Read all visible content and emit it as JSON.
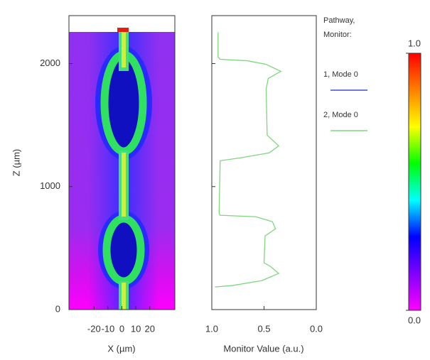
{
  "chart_data": [
    {
      "type": "heatmap",
      "xlabel": "X (µm)",
      "ylabel": "Z (µm)",
      "xlim": [
        -38,
        38
      ],
      "xticks": [
        -20,
        -10,
        0,
        10,
        20
      ],
      "ylim": [
        0,
        2390
      ],
      "yticks": [
        0,
        1000,
        2000
      ]
    },
    {
      "type": "line",
      "xlabel": "Monitor Value (a.u.)",
      "xlim": [
        1,
        0
      ],
      "xticks": [
        {
          "value": 1,
          "label": "1.0"
        },
        0.5,
        {
          "value": 0,
          "label": "0.0"
        }
      ],
      "ylim": [
        0,
        2390
      ],
      "yticks": [
        0,
        1000,
        2000
      ],
      "legend_title": [
        "Pathway,",
        "Monitor:"
      ],
      "y": [
        2254,
        2052,
        2035,
        2023,
        1994,
        1937,
        1879,
        1793,
        1418,
        1331,
        1274,
        1233,
        1210,
        784,
        767,
        755,
        715,
        657,
        599,
        380,
        352,
        294,
        236,
        196,
        184
      ],
      "series": [
        {
          "name": "1, Mode 0",
          "color": "#3f4fd0",
          "values": [
            null,
            null,
            null,
            null,
            null,
            null,
            null,
            null,
            null,
            null,
            null,
            null,
            null,
            null,
            null,
            null,
            null,
            null,
            null,
            null,
            null,
            null,
            null,
            null,
            null
          ]
        },
        {
          "name": "2, Mode 0",
          "color": "#7ed67e",
          "values": [
            0.94,
            0.94,
            0.92,
            0.66,
            0.48,
            0.34,
            0.46,
            0.48,
            0.47,
            0.36,
            0.45,
            0.73,
            0.92,
            0.93,
            0.92,
            0.58,
            0.42,
            0.39,
            0.49,
            0.5,
            0.44,
            0.36,
            0.52,
            0.8,
            0.97
          ]
        }
      ]
    },
    {
      "type": "colorbar",
      "ylim": [
        0,
        1
      ],
      "yticks": [
        {
          "value": 1,
          "label": "1.0"
        },
        {
          "value": 0,
          "label": "0.0"
        }
      ],
      "colors": [
        "#ff00ff",
        "#8000ff",
        "#0000ff",
        "#00ffff",
        "#00ff00",
        "#ffff00",
        "#ff8000",
        "#ff0000"
      ]
    }
  ]
}
